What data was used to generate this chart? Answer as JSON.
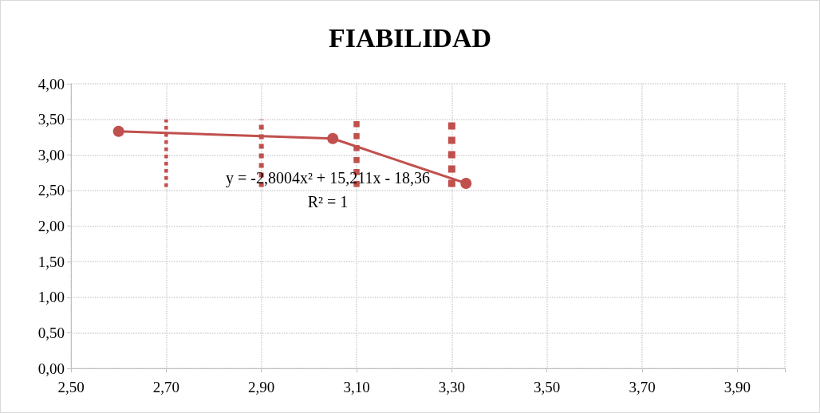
{
  "chart_data": {
    "type": "line",
    "title": "FIABILIDAD",
    "xlim": [
      2.5,
      4.0
    ],
    "xticks": [
      {
        "value": 2.5,
        "label": "2,50"
      },
      {
        "value": 2.7,
        "label": "2,70"
      },
      {
        "value": 2.9,
        "label": "2,90"
      },
      {
        "value": 3.1,
        "label": "3,10"
      },
      {
        "value": 3.3,
        "label": "3,30"
      },
      {
        "value": 3.5,
        "label": "3,50"
      },
      {
        "value": 3.7,
        "label": "3,70"
      },
      {
        "value": 3.9,
        "label": "3,90"
      },
      {
        "value": 4.0,
        "label": null
      }
    ],
    "ylim": [
      0,
      4
    ],
    "yticks": [
      {
        "value": 0,
        "label": "0,00"
      },
      {
        "value": 0.5,
        "label": "0,50"
      },
      {
        "value": 1,
        "label": "1,00"
      },
      {
        "value": 1.5,
        "label": "1,50"
      },
      {
        "value": 2,
        "label": "2,00"
      },
      {
        "value": 2.5,
        "label": "2,50"
      },
      {
        "value": 3,
        "label": "3,00"
      },
      {
        "value": 3.5,
        "label": "3,50"
      },
      {
        "value": 4,
        "label": "4,00"
      }
    ],
    "grid": true,
    "series": [
      {
        "x": [
          2.6,
          3.05,
          3.33
        ],
        "values": [
          3.33,
          3.23,
          2.6
        ],
        "color": "#c0504d",
        "marker": "circle",
        "line_style": "solid"
      },
      {
        "x": [
          2.7,
          2.7
        ],
        "values": [
          2.55,
          3.5
        ],
        "color": "#c0504d",
        "marker": "none",
        "line_style": "dotted"
      },
      {
        "x": [
          2.9,
          2.9
        ],
        "values": [
          2.55,
          3.5
        ],
        "color": "#c0504d",
        "marker": "none",
        "line_style": "dotted"
      },
      {
        "x": [
          3.1,
          3.1
        ],
        "values": [
          2.55,
          3.5
        ],
        "color": "#c0504d",
        "marker": "none",
        "line_style": "dotted"
      },
      {
        "x": [
          3.3,
          3.3
        ],
        "values": [
          2.55,
          3.5
        ],
        "color": "#c0504d",
        "marker": "none",
        "line_style": "dotted"
      }
    ],
    "annotations": [
      "y = -2,8004x² + 15,211x - 18,36",
      "R² = 1"
    ]
  }
}
